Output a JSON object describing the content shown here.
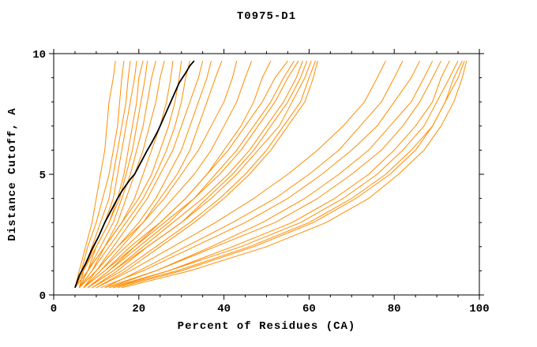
{
  "page": {
    "background_color": "#ffffff",
    "axis_color": "#000000"
  },
  "chart_data": {
    "type": "line",
    "title": "T0975-D1",
    "xlabel": "Percent of Residues (CA)",
    "ylabel": "Distance Cutoff, A",
    "xlim": [
      0,
      100
    ],
    "ylim": [
      0,
      10
    ],
    "grid": false,
    "legend": "none",
    "x_major_ticks": [
      0,
      20,
      40,
      60,
      80,
      100
    ],
    "x_tick_labels": [
      "0",
      "20",
      "40",
      "60",
      "80",
      "100"
    ],
    "x_minor_step": 5,
    "y_major_ticks": [
      0,
      5,
      10
    ],
    "y_tick_labels": [
      "0",
      "5",
      "10"
    ],
    "y_minor_step": 1,
    "series_color": "#ff8c00",
    "highlight_color": "#000000",
    "y_levels": [
      0.3,
      1,
      2,
      3,
      4,
      5,
      6,
      7,
      8,
      9,
      9.7
    ],
    "series": [
      {
        "x": [
          5,
          6,
          7.5,
          9,
          10,
          11,
          12,
          12.5,
          13,
          14,
          14.5
        ]
      },
      {
        "x": [
          5,
          6.5,
          8,
          10,
          11.5,
          13,
          14,
          15,
          15.5,
          16,
          16.5
        ]
      },
      {
        "x": [
          6,
          7,
          9,
          11,
          13,
          14,
          15,
          16,
          17,
          17.5,
          18
        ]
      },
      {
        "x": [
          5,
          7,
          9.5,
          12,
          14,
          15,
          16,
          17,
          18,
          19,
          19.5
        ]
      },
      {
        "x": [
          6,
          8,
          10,
          13,
          15,
          16.5,
          17.5,
          18.5,
          19.5,
          20,
          21
        ]
      },
      {
        "x": [
          5,
          7,
          10,
          13,
          15.5,
          17,
          18.5,
          19.5,
          20.5,
          21.5,
          22
        ]
      },
      {
        "x": [
          6,
          8,
          11,
          14,
          16,
          18,
          19.5,
          21,
          22,
          23,
          24
        ]
      },
      {
        "x": [
          5,
          8,
          12,
          15,
          17,
          19,
          21,
          22.5,
          24,
          25,
          26
        ]
      },
      {
        "x": [
          6,
          9,
          12,
          16,
          19,
          21,
          23,
          25,
          26.5,
          27.5,
          28
        ]
      },
      {
        "x": [
          5,
          8,
          12,
          16,
          20,
          23,
          25,
          27,
          28.5,
          29.5,
          30
        ]
      },
      {
        "x": [
          6,
          9,
          13,
          17,
          21,
          24,
          26.5,
          28.5,
          30,
          31,
          32
        ]
      },
      {
        "x": [
          7,
          10,
          14,
          18,
          22,
          25,
          28,
          30,
          32,
          34,
          35
        ]
      },
      {
        "x": [
          6,
          10,
          15,
          20,
          24,
          27,
          30,
          32,
          34,
          36,
          37
        ]
      },
      {
        "x": [
          7,
          11,
          16,
          21,
          25,
          29,
          32,
          34,
          36,
          38,
          39.5
        ]
      },
      {
        "x": [
          6,
          10,
          15,
          21,
          26,
          30,
          34,
          37,
          40,
          42,
          43
        ]
      },
      {
        "x": [
          7,
          11,
          17,
          23,
          28,
          33,
          37,
          40,
          43,
          45,
          46.5
        ]
      },
      {
        "x": [
          8,
          13,
          19,
          25,
          31,
          36,
          40,
          44,
          47,
          49,
          51
        ]
      },
      {
        "x": [
          7,
          12,
          18,
          25,
          31,
          36,
          41,
          45,
          49,
          52,
          55
        ]
      },
      {
        "x": [
          8,
          13,
          20,
          27,
          33,
          38,
          43,
          47,
          51,
          54,
          56.5
        ]
      },
      {
        "x": [
          7,
          12,
          19,
          26,
          33,
          39,
          44,
          48,
          52,
          55,
          57.5
        ]
      },
      {
        "x": [
          8,
          14,
          21,
          28,
          35,
          41,
          46,
          50,
          54,
          57,
          58.5
        ]
      },
      {
        "x": [
          9,
          15,
          22,
          30,
          36,
          42,
          47,
          51,
          55,
          58,
          59.5
        ]
      },
      {
        "x": [
          8,
          14,
          22,
          30,
          37,
          43,
          48,
          53,
          56,
          59,
          60.5
        ]
      },
      {
        "x": [
          9,
          16,
          24,
          32,
          39,
          45,
          50,
          54,
          58,
          60,
          61.5
        ]
      },
      {
        "x": [
          10,
          17,
          25,
          33,
          40,
          46,
          51,
          55,
          59,
          61,
          62
        ]
      },
      {
        "x": [
          10,
          18,
          28,
          38,
          47,
          55,
          62,
          68,
          73,
          76,
          78
        ]
      },
      {
        "x": [
          12,
          20,
          31,
          42,
          52,
          60,
          67,
          72,
          77,
          80,
          82
        ]
      },
      {
        "x": [
          11,
          21,
          33,
          45,
          55,
          63,
          70,
          76,
          80,
          84,
          86
        ]
      },
      {
        "x": [
          13,
          24,
          37,
          49,
          59,
          67,
          74,
          79,
          84,
          87,
          89
        ]
      },
      {
        "x": [
          12,
          24,
          38,
          52,
          62,
          70,
          77,
          82,
          86,
          89,
          91
        ]
      },
      {
        "x": [
          14,
          27,
          42,
          56,
          66,
          74,
          80,
          85,
          89,
          91,
          93
        ]
      },
      {
        "x": [
          13,
          27,
          44,
          58,
          68,
          76,
          82,
          87,
          90,
          93,
          95
        ]
      },
      {
        "x": [
          15,
          30,
          47,
          61,
          71,
          79,
          85,
          89,
          92,
          95,
          96.5
        ]
      },
      {
        "x": [
          16,
          32,
          50,
          64,
          74,
          81,
          87,
          91,
          94,
          96,
          97
        ]
      },
      {
        "x": [
          14,
          29,
          46,
          60,
          70,
          78,
          84,
          89,
          92,
          94,
          96
        ]
      }
    ],
    "highlight_series": {
      "y": [
        0.3,
        0.8,
        1.3,
        1.9,
        2.4,
        3,
        3.5,
        4,
        4.3,
        4.8,
        5,
        5.5,
        6,
        6.3,
        6.8,
        7.2,
        7.6,
        8,
        8.4,
        8.8,
        9.2,
        9.5,
        9.7
      ],
      "x": [
        5,
        6,
        7.5,
        9,
        10.5,
        12,
        13.5,
        15,
        16,
        18,
        19,
        20.5,
        22,
        23,
        24.5,
        25.5,
        26.5,
        27.5,
        28.5,
        29.5,
        31,
        32,
        33
      ]
    }
  }
}
